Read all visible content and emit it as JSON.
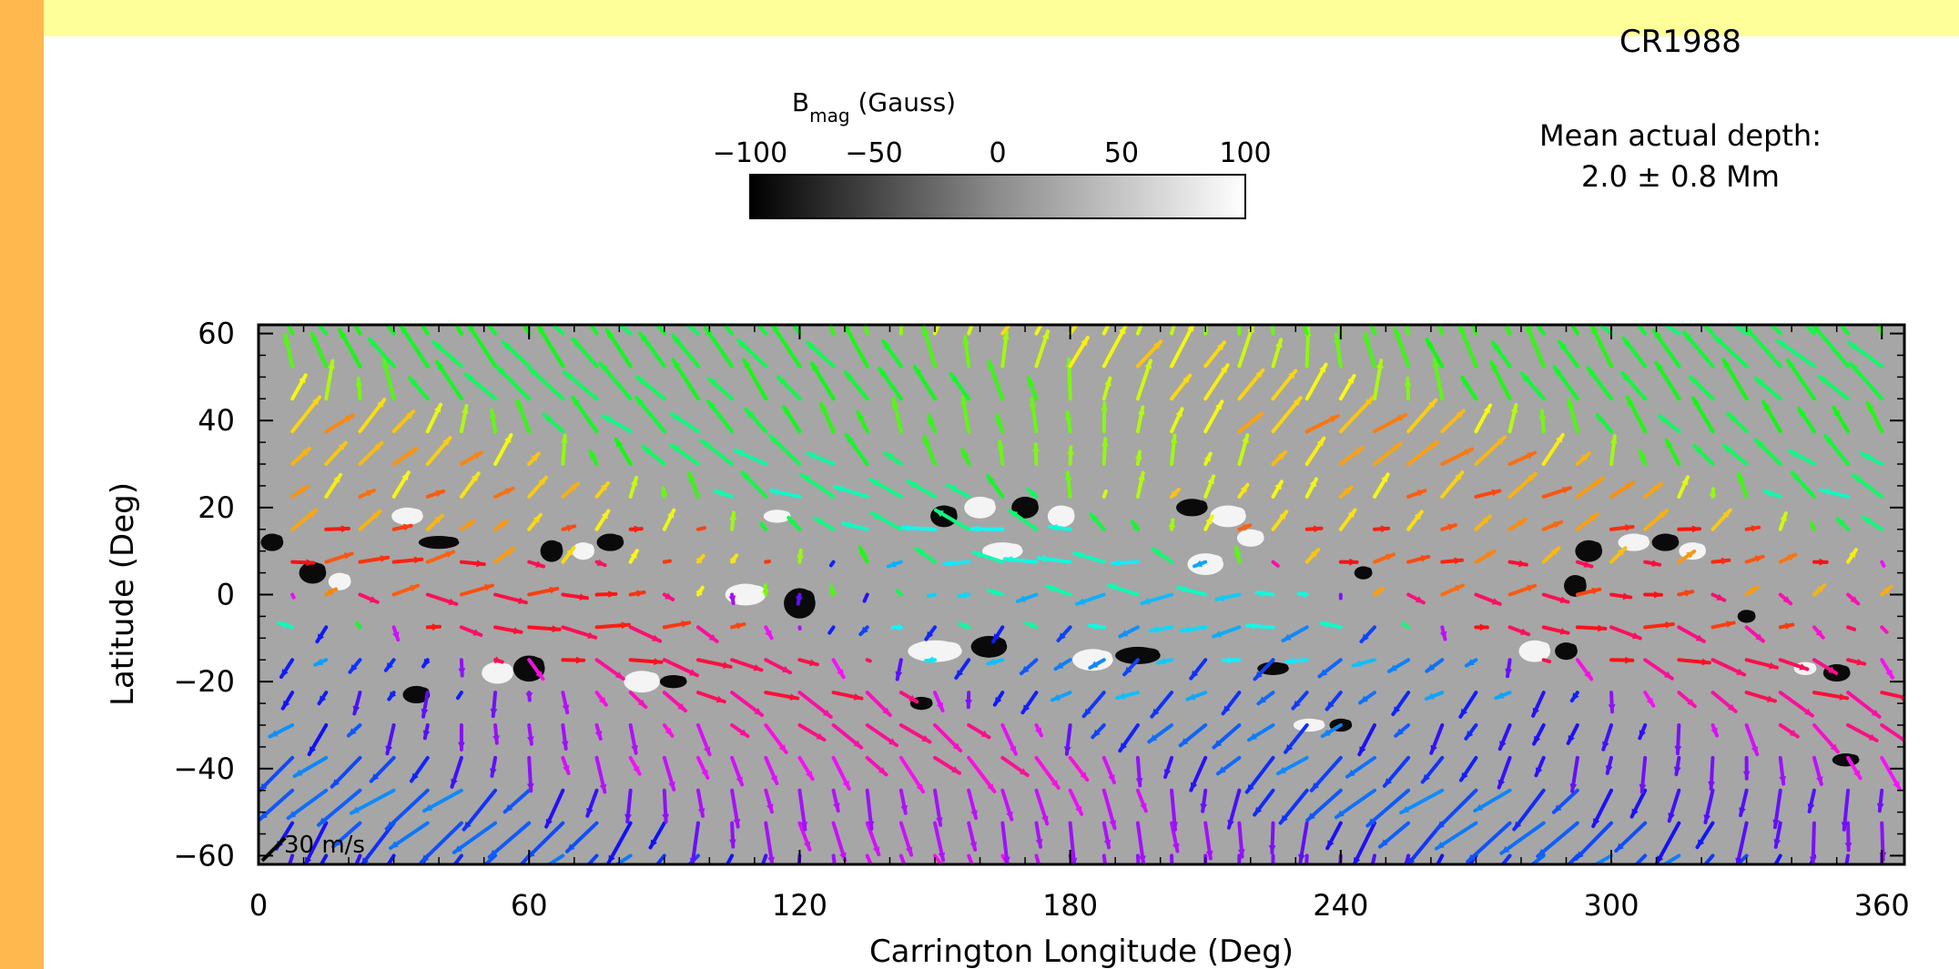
{
  "theme": {
    "band_top": "#ffff99",
    "band_left": "#ffb84d",
    "map_background": "#a6a6a6"
  },
  "annotations": {
    "rotation": "CR1988",
    "depth_label": "Mean actual depth:",
    "depth_value": "2.0 ± 0.8 Mm",
    "scale_arrow": "30 m/s"
  },
  "colorbar": {
    "title_main": "B",
    "title_sub": "mag",
    "title_rest": " (Gauss)",
    "ticks": [
      {
        "value": -100,
        "label": "−100"
      },
      {
        "value": -50,
        "label": "−50"
      },
      {
        "value": 0,
        "label": "0"
      },
      {
        "value": 50,
        "label": "50"
      },
      {
        "value": 100,
        "label": "100"
      }
    ],
    "range": [
      -100,
      100
    ]
  },
  "chart_data": {
    "type": "vector-field",
    "xlabel": "Carrington Longitude (Deg)",
    "ylabel": "Latitude (Deg)",
    "xlim": [
      0,
      365
    ],
    "ylim": [
      -62,
      62
    ],
    "xticks": [
      0,
      60,
      120,
      180,
      240,
      300,
      360
    ],
    "yticks": [
      -60,
      -40,
      -20,
      0,
      20,
      40,
      60
    ],
    "tick_labels_x": [
      "0",
      "60",
      "120",
      "180",
      "240",
      "300",
      "360"
    ],
    "tick_labels_y": [
      "−60",
      "−40",
      "−20",
      "0",
      "20",
      "40",
      "60"
    ],
    "grid_step_deg": 7.5,
    "scale_arrow_ms": 30,
    "active_regions": [
      {
        "lon": 3,
        "lat": 12,
        "sign": -1,
        "w": 5,
        "h": 4
      },
      {
        "lon": 12,
        "lat": 5,
        "sign": -1,
        "w": 6,
        "h": 5
      },
      {
        "lon": 18,
        "lat": 3,
        "sign": 1,
        "w": 5,
        "h": 4
      },
      {
        "lon": 33,
        "lat": 18,
        "sign": 1,
        "w": 7,
        "h": 4
      },
      {
        "lon": 40,
        "lat": 12,
        "sign": -1,
        "w": 9,
        "h": 3
      },
      {
        "lon": 65,
        "lat": 10,
        "sign": -1,
        "w": 5,
        "h": 5
      },
      {
        "lon": 72,
        "lat": 10,
        "sign": 1,
        "w": 5,
        "h": 4
      },
      {
        "lon": 78,
        "lat": 12,
        "sign": -1,
        "w": 6,
        "h": 4
      },
      {
        "lon": 60,
        "lat": -17,
        "sign": -1,
        "w": 7,
        "h": 6
      },
      {
        "lon": 53,
        "lat": -18,
        "sign": 1,
        "w": 7,
        "h": 5
      },
      {
        "lon": 35,
        "lat": -23,
        "sign": -1,
        "w": 6,
        "h": 4
      },
      {
        "lon": 85,
        "lat": -20,
        "sign": 1,
        "w": 8,
        "h": 5
      },
      {
        "lon": 92,
        "lat": -20,
        "sign": -1,
        "w": 6,
        "h": 3
      },
      {
        "lon": 120,
        "lat": -2,
        "sign": -1,
        "w": 7,
        "h": 7
      },
      {
        "lon": 108,
        "lat": 0,
        "sign": 1,
        "w": 9,
        "h": 5
      },
      {
        "lon": 115,
        "lat": 18,
        "sign": 1,
        "w": 6,
        "h": 3
      },
      {
        "lon": 152,
        "lat": 18,
        "sign": -1,
        "w": 6,
        "h": 5
      },
      {
        "lon": 160,
        "lat": 20,
        "sign": 1,
        "w": 7,
        "h": 5
      },
      {
        "lon": 170,
        "lat": 20,
        "sign": -1,
        "w": 6,
        "h": 5
      },
      {
        "lon": 178,
        "lat": 18,
        "sign": 1,
        "w": 6,
        "h": 5
      },
      {
        "lon": 165,
        "lat": 10,
        "sign": 1,
        "w": 9,
        "h": 4
      },
      {
        "lon": 150,
        "lat": -13,
        "sign": 1,
        "w": 12,
        "h": 5
      },
      {
        "lon": 162,
        "lat": -12,
        "sign": -1,
        "w": 8,
        "h": 5
      },
      {
        "lon": 147,
        "lat": -25,
        "sign": -1,
        "w": 5,
        "h": 3
      },
      {
        "lon": 185,
        "lat": -15,
        "sign": 1,
        "w": 9,
        "h": 5
      },
      {
        "lon": 195,
        "lat": -14,
        "sign": -1,
        "w": 10,
        "h": 4
      },
      {
        "lon": 207,
        "lat": 20,
        "sign": -1,
        "w": 7,
        "h": 4
      },
      {
        "lon": 215,
        "lat": 18,
        "sign": 1,
        "w": 8,
        "h": 5
      },
      {
        "lon": 220,
        "lat": 13,
        "sign": 1,
        "w": 6,
        "h": 4
      },
      {
        "lon": 210,
        "lat": 7,
        "sign": 1,
        "w": 8,
        "h": 5
      },
      {
        "lon": 245,
        "lat": 5,
        "sign": -1,
        "w": 4,
        "h": 3
      },
      {
        "lon": 225,
        "lat": -17,
        "sign": -1,
        "w": 7,
        "h": 3
      },
      {
        "lon": 233,
        "lat": -30,
        "sign": 1,
        "w": 7,
        "h": 3
      },
      {
        "lon": 240,
        "lat": -30,
        "sign": -1,
        "w": 5,
        "h": 3
      },
      {
        "lon": 295,
        "lat": 10,
        "sign": -1,
        "w": 6,
        "h": 5
      },
      {
        "lon": 305,
        "lat": 12,
        "sign": 1,
        "w": 7,
        "h": 4
      },
      {
        "lon": 312,
        "lat": 12,
        "sign": -1,
        "w": 6,
        "h": 4
      },
      {
        "lon": 318,
        "lat": 10,
        "sign": 1,
        "w": 6,
        "h": 4
      },
      {
        "lon": 292,
        "lat": 2,
        "sign": -1,
        "w": 5,
        "h": 5
      },
      {
        "lon": 283,
        "lat": -13,
        "sign": 1,
        "w": 7,
        "h": 5
      },
      {
        "lon": 290,
        "lat": -13,
        "sign": -1,
        "w": 5,
        "h": 4
      },
      {
        "lon": 330,
        "lat": -5,
        "sign": -1,
        "w": 4,
        "h": 3
      },
      {
        "lon": 350,
        "lat": -18,
        "sign": -1,
        "w": 6,
        "h": 4
      },
      {
        "lon": 343,
        "lat": -17,
        "sign": 1,
        "w": 5,
        "h": 3
      },
      {
        "lon": 352,
        "lat": -38,
        "sign": -1,
        "w": 6,
        "h": 3
      }
    ]
  }
}
